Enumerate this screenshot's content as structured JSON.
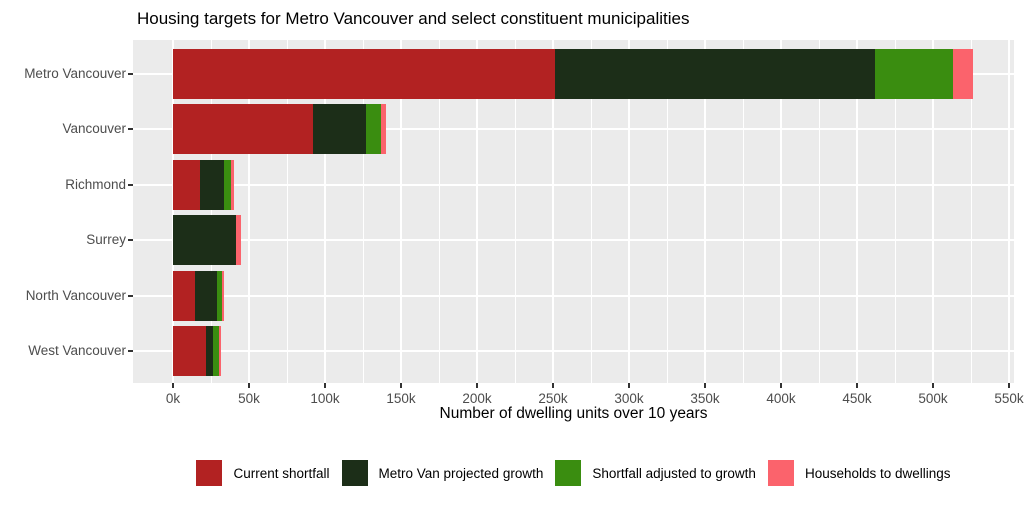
{
  "chart_data": {
    "type": "bar",
    "orientation": "horizontal",
    "stacked": true,
    "title": "Housing targets for Metro Vancouver and select constituent municipalities",
    "xlabel": "Number of dwelling units over 10 years",
    "ylabel": "",
    "categories": [
      "Metro Vancouver",
      "Vancouver",
      "Richmond",
      "Surrey",
      "North Vancouver",
      "West Vancouver"
    ],
    "series": [
      {
        "name": "Current shortfall",
        "color": "#B22222",
        "values": [
          251000,
          92000,
          18000,
          0,
          14500,
          22000
        ]
      },
      {
        "name": "Metro Van projected growth",
        "color": "#1C2E18",
        "values": [
          211000,
          35000,
          15500,
          41500,
          14500,
          4500
        ]
      },
      {
        "name": "Shortfall adjusted to growth",
        "color": "#3A8D10",
        "values": [
          51000,
          10000,
          4500,
          0,
          3300,
          4000
        ]
      },
      {
        "name": "Households to dwellings",
        "color": "#FB636C",
        "values": [
          13000,
          3500,
          2000,
          3000,
          1000,
          1000
        ]
      }
    ],
    "x_ticks": [
      {
        "label": "0k",
        "value": 0
      },
      {
        "label": "50k",
        "value": 50000
      },
      {
        "label": "100k",
        "value": 100000
      },
      {
        "label": "150k",
        "value": 150000
      },
      {
        "label": "200k",
        "value": 200000
      },
      {
        "label": "250k",
        "value": 250000
      },
      {
        "label": "300k",
        "value": 300000
      },
      {
        "label": "350k",
        "value": 350000
      },
      {
        "label": "400k",
        "value": 400000
      },
      {
        "label": "450k",
        "value": 450000
      },
      {
        "label": "500k",
        "value": 500000
      },
      {
        "label": "550k",
        "value": 550000
      }
    ],
    "x_minor_step": 25000,
    "xlim": [
      0,
      550000
    ],
    "grid": true,
    "legend_position": "bottom",
    "panel_background": "#EBEBEB",
    "grid_color": "#FFFFFF",
    "axis_text_color": "#4D4D4D",
    "title_color": "#000000"
  }
}
